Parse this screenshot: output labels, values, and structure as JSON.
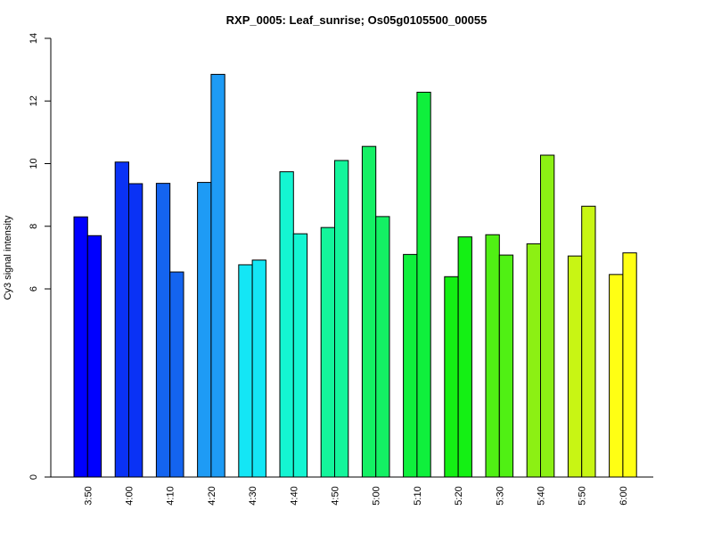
{
  "chart_data": {
    "type": "bar",
    "title": "RXP_0005: Leaf_sunrise; Os05g0105500_00055",
    "xlabel": "",
    "ylabel": "Cy3 signal intensity",
    "yticks": [
      0,
      6,
      8,
      10,
      12,
      14
    ],
    "ylim": [
      0,
      14
    ],
    "y_axis_break": "scale compressed between 0 and 6 (no ticks for 1-5)",
    "categories": [
      "3:50",
      "4:00",
      "4:10",
      "4:20",
      "4:30",
      "4:40",
      "4:50",
      "5:00",
      "5:10",
      "5:20",
      "5:30",
      "5:40",
      "5:50",
      "6:00"
    ],
    "series": [
      {
        "values": [
          8.3,
          10.05,
          9.37,
          9.4,
          6.77,
          9.74,
          7.96,
          10.55,
          7.1,
          6.39,
          7.73,
          7.44,
          7.05,
          6.46
        ]
      },
      {
        "values": [
          7.7,
          9.36,
          6.54,
          12.85,
          6.92,
          7.76,
          10.1,
          8.31,
          12.28,
          7.66,
          7.08,
          10.27,
          8.64,
          7.15
        ]
      }
    ],
    "category_colors": [
      "#0000ff",
      "#0a32f5",
      "#1464f0",
      "#1e9bf5",
      "#14e6f5",
      "#14f5d2",
      "#14f59b",
      "#14f064",
      "#0ff03c",
      "#14f014",
      "#50f014",
      "#8cf014",
      "#c8f514",
      "#ffff14"
    ],
    "grid": false,
    "legend": "none"
  }
}
